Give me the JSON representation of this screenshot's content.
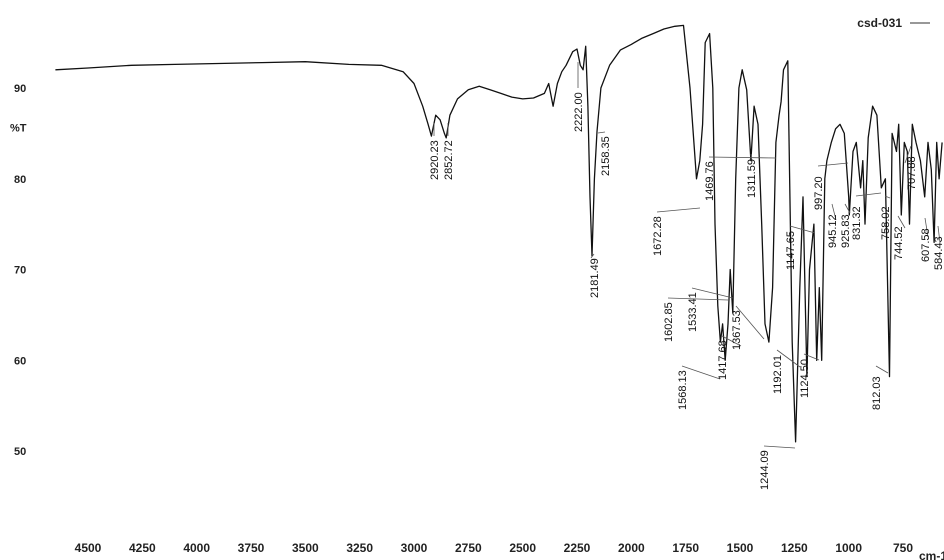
{
  "chart_data": {
    "type": "line",
    "title": "",
    "xlabel": "cm-1",
    "ylabel": "%T",
    "xlim": [
      4650,
      650
    ],
    "ylim": [
      42,
      100
    ],
    "x_reversed": true,
    "grid": false,
    "legend_position": "top-right",
    "x_ticks": [
      4500,
      4250,
      4000,
      3750,
      3500,
      3250,
      3000,
      2750,
      2500,
      2250,
      2000,
      1750,
      1500,
      1250,
      1000,
      750
    ],
    "y_ticks": [
      50,
      60,
      70,
      80,
      90
    ],
    "series": [
      {
        "name": "csd-031",
        "color": "#555555",
        "x": [
          4650,
          4500,
          4300,
          4100,
          3900,
          3700,
          3500,
          3300,
          3150,
          3050,
          3000,
          2960,
          2935,
          2920,
          2900,
          2880,
          2860,
          2852,
          2835,
          2800,
          2750,
          2700,
          2650,
          2600,
          2550,
          2500,
          2450,
          2400,
          2380,
          2360,
          2340,
          2320,
          2300,
          2270,
          2250,
          2235,
          2222,
          2210,
          2200,
          2190,
          2181,
          2170,
          2158,
          2140,
          2100,
          2050,
          2000,
          1950,
          1900,
          1850,
          1800,
          1760,
          1730,
          1700,
          1685,
          1672,
          1660,
          1640,
          1625,
          1615,
          1602,
          1590,
          1580,
          1568,
          1555,
          1545,
          1533,
          1520,
          1505,
          1490,
          1469,
          1450,
          1435,
          1417,
          1400,
          1385,
          1367,
          1350,
          1335,
          1320,
          1311,
          1300,
          1280,
          1260,
          1244,
          1225,
          1210,
          1192,
          1180,
          1160,
          1147,
          1135,
          1124,
          1110,
          1100,
          1080,
          1060,
          1040,
          1020,
          1000,
          997,
          980,
          965,
          945,
          935,
          925,
          910,
          890,
          870,
          850,
          831,
          812,
          800,
          780,
          770,
          758,
          744,
          730,
          720,
          707,
          690,
          670,
          650,
          635,
          620,
          607,
          595,
          584,
          570
        ],
        "y": [
          92,
          92.2,
          92.5,
          92.6,
          92.7,
          92.8,
          92.9,
          92.6,
          92.5,
          91.8,
          90.5,
          88,
          86,
          84.7,
          87,
          86.5,
          85,
          84.5,
          87,
          88.8,
          89.8,
          90.2,
          89.8,
          89.4,
          89,
          88.8,
          88.9,
          89.4,
          90.5,
          88,
          90.5,
          91.8,
          92.5,
          94,
          94.3,
          92.5,
          92,
          94.6,
          88,
          78,
          71.5,
          80,
          85.2,
          90,
          92.5,
          94.2,
          94.8,
          95.5,
          96,
          96.5,
          96.8,
          96.9,
          90,
          80,
          82,
          86,
          95,
          96,
          90,
          75,
          66,
          62,
          64,
          60,
          64,
          70,
          65.2,
          80,
          90,
          92,
          89.8,
          82,
          88,
          86,
          75,
          64,
          62,
          68,
          84,
          87,
          88.5,
          92,
          93,
          62,
          51,
          68,
          78,
          58.2,
          70,
          75,
          60,
          68,
          60,
          80,
          82,
          84,
          85.5,
          86,
          85,
          78,
          76,
          83,
          84,
          79,
          82,
          75,
          84.5,
          88,
          87,
          79,
          80,
          58.2,
          85,
          83,
          86,
          76,
          84,
          83,
          75,
          86,
          84,
          82,
          78,
          84,
          81,
          73,
          84,
          80,
          84
        ]
      }
    ],
    "peak_labels": [
      "2920.23",
      "2852.72",
      "2222.00",
      "2158.35",
      "2181.49",
      "1672.28",
      "1469.76",
      "1602.85",
      "1533.41",
      "1568.13",
      "1417.68",
      "1367.53",
      "1311.59",
      "1244.09",
      "1192.01",
      "1147.65",
      "1124.50",
      "997.20",
      "945.12",
      "925.83",
      "831.32",
      "812.03",
      "758.02",
      "744.52",
      "707.88",
      "607.58",
      "584.43"
    ]
  }
}
